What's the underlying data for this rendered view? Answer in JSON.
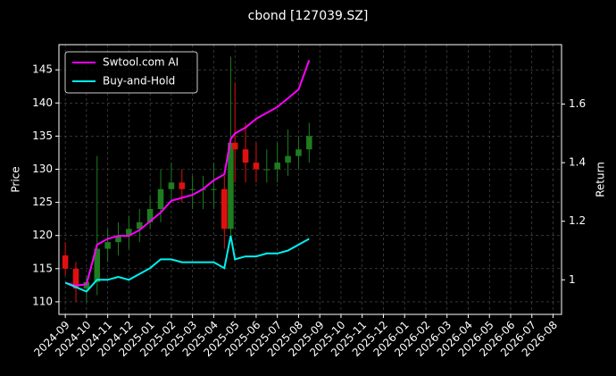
{
  "chart_data": {
    "type": "candlestick",
    "title": "cbond [127039.SZ]",
    "ylabel": "Price",
    "y2label": "Return",
    "x": [
      0,
      0.5,
      1,
      1.5,
      2,
      2.5,
      3,
      3.5,
      4,
      4.5,
      5,
      5.5,
      6,
      6.5,
      7,
      7.5,
      7.8,
      8,
      8.5,
      9,
      9.5,
      10,
      10.5,
      11,
      11.5
    ],
    "open": [
      117,
      115,
      112,
      113,
      118,
      119,
      120,
      121,
      122,
      124,
      127,
      128,
      127,
      127,
      127,
      127,
      121,
      134,
      133,
      131,
      130,
      130,
      131,
      132,
      133
    ],
    "high": [
      119,
      116,
      114,
      132,
      121,
      122,
      123,
      124,
      126,
      130,
      131,
      130,
      129,
      129,
      131,
      129,
      147,
      143,
      137,
      134,
      133,
      134,
      136,
      135,
      137
    ],
    "low": [
      114,
      110,
      110,
      111,
      116,
      117,
      118,
      119,
      121,
      122,
      125,
      125,
      124,
      124,
      124,
      118,
      120,
      128,
      128,
      128,
      128,
      128,
      129,
      130,
      131
    ],
    "close": [
      115,
      112,
      113,
      118,
      119,
      120,
      121,
      122,
      124,
      127,
      128,
      127,
      127,
      127,
      127,
      121,
      134,
      133,
      131,
      130,
      130,
      131,
      132,
      133,
      135
    ],
    "up_color": "#1e7d1e",
    "down_color": "#e01010",
    "series": [
      {
        "name": "Swtool.com AI",
        "color": "#ff00ff",
        "axis": "y2",
        "values": [
          0.99,
          0.98,
          0.985,
          1.12,
          1.14,
          1.15,
          1.15,
          1.17,
          1.2,
          1.23,
          1.27,
          1.28,
          1.29,
          1.31,
          1.34,
          1.36,
          1.48,
          1.5,
          1.52,
          1.55,
          1.57,
          1.59,
          1.62,
          1.65,
          1.75
        ]
      },
      {
        "name": "Buy-and-Hold",
        "color": "#00f0f0",
        "axis": "y2",
        "values": [
          0.99,
          0.975,
          0.96,
          1.0,
          1.0,
          1.01,
          1.0,
          1.02,
          1.04,
          1.07,
          1.07,
          1.06,
          1.06,
          1.06,
          1.06,
          1.04,
          1.15,
          1.07,
          1.08,
          1.08,
          1.09,
          1.09,
          1.1,
          1.12,
          1.14
        ]
      }
    ],
    "xlim": [
      -0.3,
      23.4
    ],
    "xticks": [
      {
        "value": 0,
        "label": "2024-09"
      },
      {
        "value": 1,
        "label": "2024-10"
      },
      {
        "value": 2,
        "label": "2024-11"
      },
      {
        "value": 3,
        "label": "2024-12"
      },
      {
        "value": 4,
        "label": "2025-01"
      },
      {
        "value": 5,
        "label": "2025-02"
      },
      {
        "value": 6,
        "label": "2025-03"
      },
      {
        "value": 7,
        "label": "2025-04"
      },
      {
        "value": 8,
        "label": "2025-05"
      },
      {
        "value": 9,
        "label": "2025-06"
      },
      {
        "value": 10,
        "label": "2025-07"
      },
      {
        "value": 11,
        "label": "2025-08"
      },
      {
        "value": 12,
        "label": "2025-09"
      },
      {
        "value": 13,
        "label": "2025-10"
      },
      {
        "value": 14,
        "label": "2025-11"
      },
      {
        "value": 15,
        "label": "2025-12"
      },
      {
        "value": 16,
        "label": "2026-01"
      },
      {
        "value": 17,
        "label": "2026-02"
      },
      {
        "value": 18,
        "label": "2026-03"
      },
      {
        "value": 19,
        "label": "2026-04"
      },
      {
        "value": 20,
        "label": "2026-05"
      },
      {
        "value": 21,
        "label": "2026-06"
      },
      {
        "value": 22,
        "label": "2026-07"
      },
      {
        "value": 23,
        "label": "2026-08"
      }
    ],
    "ylim": [
      108.1,
      148.8
    ],
    "yticks": [
      110,
      115,
      120,
      125,
      130,
      135,
      140,
      145
    ],
    "y2lim": [
      0.882,
      1.803
    ],
    "y2ticks": [
      1.0,
      1.2,
      1.4,
      1.6
    ],
    "grid": true,
    "legend": "upper left"
  }
}
